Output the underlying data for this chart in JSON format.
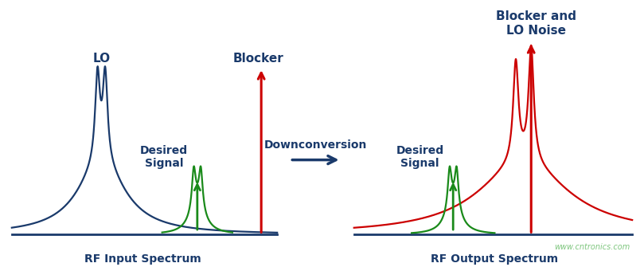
{
  "background_color": "#ffffff",
  "dark_blue": "#1a3a6b",
  "green": "#1a8a1a",
  "red": "#cc0000",
  "title_LO": "LO",
  "title_Blocker_left": "Blocker",
  "title_Blocker_right": "Blocker and\nLO Noise",
  "title_desired_left": "Desired\nSignal",
  "title_desired_right": "Desired\nSignal",
  "label_input": "RF Input Spectrum",
  "label_output": "RF Output Spectrum",
  "downconversion_text": "Downconversion",
  "watermark": "www.cntronics.com",
  "fig_width": 8.09,
  "fig_height": 3.35,
  "dpi": 100
}
